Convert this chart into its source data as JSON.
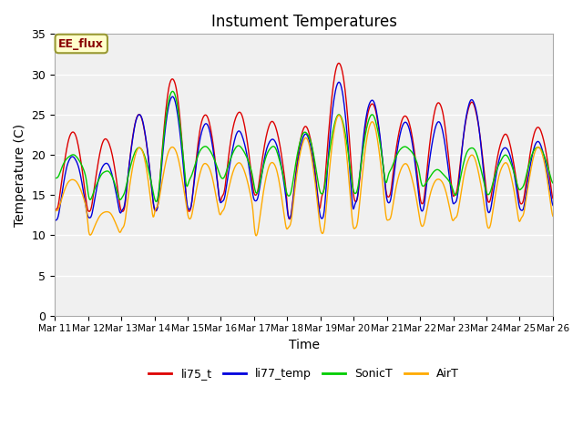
{
  "title": "Instument Temperatures",
  "xlabel": "Time",
  "ylabel": "Temperature (C)",
  "ylim": [
    0,
    35
  ],
  "yticks": [
    0,
    5,
    10,
    15,
    20,
    25,
    30,
    35
  ],
  "annotation": "EE_flux",
  "plot_bg": "#f0f0f0",
  "fig_color": "#ffffff",
  "legend": [
    "li75_t",
    "li77_temp",
    "SonicT",
    "AirT"
  ],
  "line_colors": [
    "#dd0000",
    "#0000dd",
    "#00cc00",
    "#ffaa00"
  ],
  "xtick_labels": [
    "Mar 11",
    "Mar 12",
    "Mar 13",
    "Mar 14",
    "Mar 15",
    "Mar 16",
    "Mar 17",
    "Mar 18",
    "Mar 19",
    "Mar 20",
    "Mar 21",
    "Mar 22",
    "Mar 23",
    "Mar 24",
    "Mar 25",
    "Mar 26"
  ],
  "days": 15,
  "pts_per_day": 48
}
